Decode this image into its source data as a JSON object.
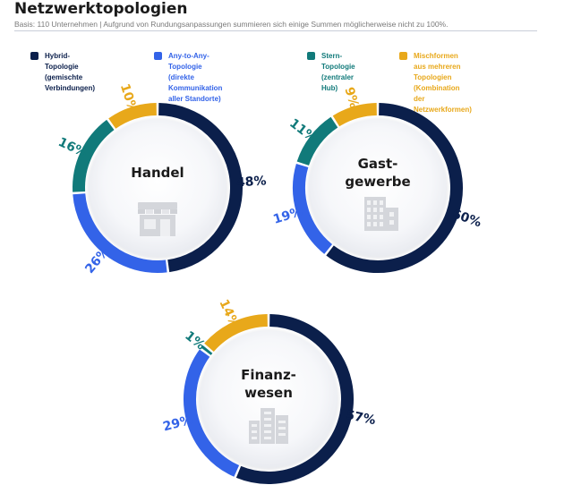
{
  "page": {
    "title": "Netzwerktopologien",
    "subtitle": "Basis: 110 Unternehmen | Aufgrund von Rundungsanpassungen summieren sich einige Summen möglicherweise nicht zu 100%."
  },
  "legend": [
    {
      "label": "Hybrid-Topologie\n(gemischte Verbindungen)",
      "color": "#0b1f4b"
    },
    {
      "label": "Any-to-Any-Topologie (direkte\nKommunikation aller Standorte)",
      "color": "#3363e8"
    },
    {
      "label": "Stern-Topologie\n(zentraler Hub)",
      "color": "#117a7a"
    },
    {
      "label": "Mischformen aus mehreren\nTopologien (Kombination der\nNetzwerkformen)",
      "color": "#e8a81a"
    }
  ],
  "chart_data": [
    {
      "type": "pie",
      "title": "Handel",
      "icon": "store-icon",
      "categories": [
        "Hybrid-Topologie",
        "Any-to-Any-Topologie",
        "Stern-Topologie",
        "Mischformen"
      ],
      "values": [
        48,
        26,
        16,
        10
      ],
      "labels": [
        "48%",
        "26%",
        "16%",
        "10%"
      ]
    },
    {
      "type": "pie",
      "title": "Gast-\ngewerbe",
      "icon": "building-icon",
      "categories": [
        "Hybrid-Topologie",
        "Any-to-Any-Topologie",
        "Stern-Topologie",
        "Mischformen"
      ],
      "values": [
        60,
        19,
        11,
        9
      ],
      "labels": [
        "60%",
        "19%",
        "11%",
        "9%"
      ]
    },
    {
      "type": "pie",
      "title": "Finanz-\nwesen",
      "icon": "office-buildings-icon",
      "categories": [
        "Hybrid-Topologie",
        "Any-to-Any-Topologie",
        "Stern-Topologie",
        "Mischformen"
      ],
      "values": [
        57,
        29,
        1,
        14
      ],
      "labels": [
        "57%",
        "29%",
        "1%",
        "14%"
      ]
    }
  ]
}
